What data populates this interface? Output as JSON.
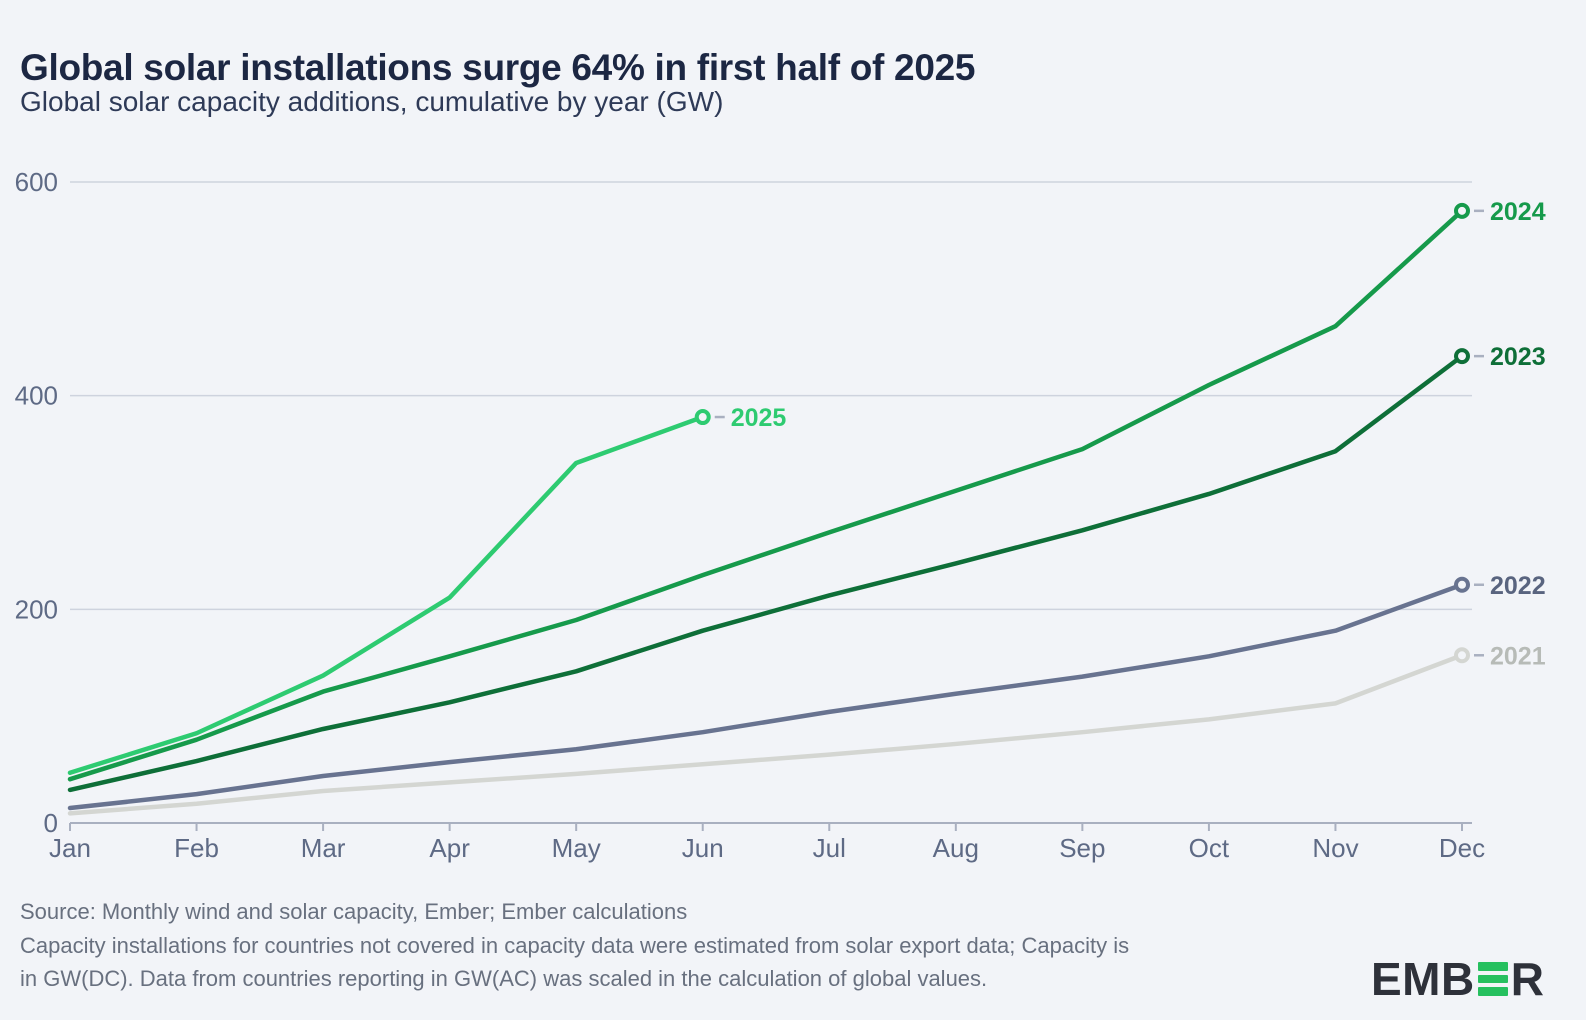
{
  "header": {
    "title": "Global solar installations surge 64% in first half of 2025",
    "subtitle": "Global solar capacity additions, cumulative by year (GW)"
  },
  "chart_data": {
    "type": "line",
    "title": "Global solar installations surge 64% in first half of 2025",
    "subtitle": "Global solar capacity additions, cumulative by year (GW)",
    "unit": "GW",
    "categories": [
      "Jan",
      "Feb",
      "Mar",
      "Apr",
      "May",
      "Jun",
      "Jul",
      "Aug",
      "Sep",
      "Oct",
      "Nov",
      "Dec"
    ],
    "ylim": [
      0,
      600
    ],
    "y_ticks": [
      0,
      200,
      400,
      600
    ],
    "grid": "horizontal",
    "legend_position": "line-end-labels",
    "colors": {
      "background": "#f2f4f8",
      "gridline": "#ced3de",
      "axis": "#a9b0c0",
      "axis_text": "#5e6a85"
    },
    "series": [
      {
        "name": "2021",
        "color": "#d4d6d2",
        "label_color": "#b7bbb7",
        "values": [
          9,
          18,
          30,
          38,
          46,
          55,
          64,
          74,
          85,
          97,
          112,
          157
        ]
      },
      {
        "name": "2022",
        "color": "#687390",
        "label_color": "#59647f",
        "values": [
          14,
          27,
          44,
          57,
          69,
          85,
          104,
          121,
          137,
          156,
          180,
          223
        ]
      },
      {
        "name": "2023",
        "color": "#0e6f38",
        "label_color": "#0e6f38",
        "values": [
          31,
          58,
          88,
          113,
          142,
          180,
          213,
          243,
          274,
          308,
          348,
          437
        ]
      },
      {
        "name": "2024",
        "color": "#169a4b",
        "label_color": "#169a4b",
        "values": [
          41,
          78,
          123,
          156,
          190,
          232,
          272,
          311,
          350,
          410,
          465,
          573
        ]
      },
      {
        "name": "2025",
        "color": "#2ecb71",
        "label_color": "#2ecb71",
        "values": [
          47,
          84,
          138,
          211,
          337,
          380
        ]
      }
    ]
  },
  "footer": {
    "source_lines": [
      "Source: Monthly wind and solar capacity, Ember; Ember calculations",
      "Capacity installations for countries not covered in capacity data were estimated from solar export data; Capacity is",
      "in GW(DC). Data from countries reporting in GW(AC) was scaled in the calculation of global values."
    ]
  },
  "logo": {
    "prefix": "EMB",
    "suffix": "R",
    "name": "EMBER"
  }
}
